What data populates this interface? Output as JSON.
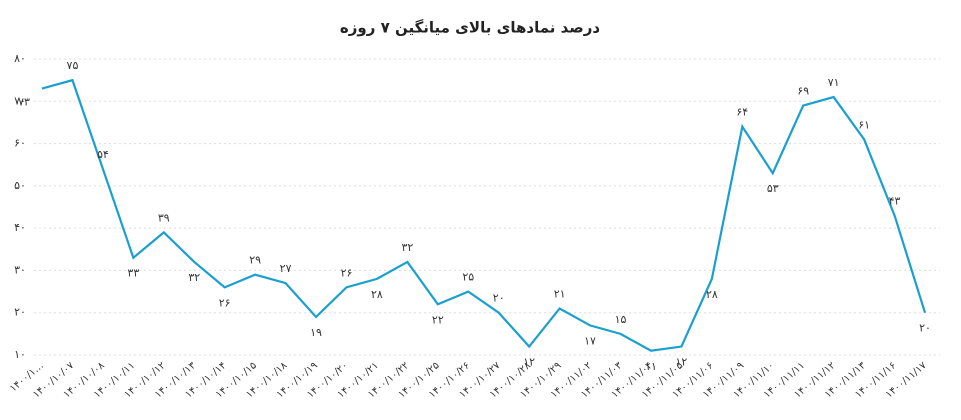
{
  "chart_data": {
    "type": "line",
    "title": "درصد نمادهای بالای میانگین ۷ روزه",
    "categories": [
      "۱۴۰۰/۱…",
      "۱۴۰۰/۱۰/۰۷",
      "۱۴۰۰/۱۰/۰۸",
      "۱۴۰۰/۱۰/۱۱",
      "۱۴۰۰/۱۰/۱۲",
      "۱۴۰۰/۱۰/۱۳",
      "۱۴۰۰/۱۰/۱۴",
      "۱۴۰۰/۱۰/۱۵",
      "۱۴۰۰/۱۰/۱۸",
      "۱۴۰۰/۱۰/۱۹",
      "۱۴۰۰/۱۰/۲۰",
      "۱۴۰۰/۱۰/۲۱",
      "۱۴۰۰/۱۰/۲۲",
      "۱۴۰۰/۱۰/۲۵",
      "۱۴۰۰/۱۰/۲۶",
      "۱۴۰۰/۱۰/۲۷",
      "۱۴۰۰/۱۰/۲۸",
      "۱۴۰۰/۱۰/۲۹",
      "۱۴۰۰/۱۱/۰۲",
      "۱۴۰۰/۱۱/۰۳",
      "۱۴۰۰/۱۱/۰۴",
      "۱۴۰۰/۱۱/۰۵",
      "۱۴۰۰/۱۱/۰۶",
      "۱۴۰۰/۱۱/۰۹",
      "۱۴۰۰/۱۱/۱۰",
      "۱۴۰۰/۱۱/۱۱",
      "۱۴۰۰/۱۱/۱۲",
      "۱۴۰۰/۱۱/۱۳",
      "۱۴۰۰/۱۱/۱۶",
      "۱۴۰۰/۱۱/۱۷"
    ],
    "values": [
      73,
      75,
      54,
      33,
      39,
      32,
      26,
      29,
      27,
      19,
      26,
      28,
      32,
      22,
      25,
      20,
      12,
      21,
      17,
      15,
      11,
      12,
      28,
      64,
      53,
      69,
      71,
      61,
      43,
      20
    ],
    "value_labels": [
      "۷۳",
      "۷۵",
      "۵۴",
      "۳۳",
      "۳۹",
      "۳۲",
      "۲۶",
      "۲۹",
      "۲۷",
      "۱۹",
      "۲۶",
      "۲۸",
      "۳۲",
      "۲۲",
      "۲۵",
      "۲۰",
      "۱۲",
      "۲۱",
      "۱۷",
      "۱۵",
      "۱۱",
      "۱۲",
      "۲۸",
      "۶۴",
      "۵۳",
      "۶۹",
      "۷۱",
      "۶۱",
      "۴۳",
      "۲۰"
    ],
    "color": "#1a9fcf",
    "ylim": [
      10,
      80
    ],
    "yticks": [
      {
        "value": 10,
        "label": "۱۰"
      },
      {
        "value": 20,
        "label": "۲۰"
      },
      {
        "value": 30,
        "label": "۳۰"
      },
      {
        "value": 40,
        "label": "۴۰"
      },
      {
        "value": 50,
        "label": "۵۰"
      },
      {
        "value": 60,
        "label": "۶۰"
      },
      {
        "value": 70,
        "label": "۷۰"
      },
      {
        "value": 80,
        "label": "۸۰"
      }
    ],
    "grid": true
  }
}
